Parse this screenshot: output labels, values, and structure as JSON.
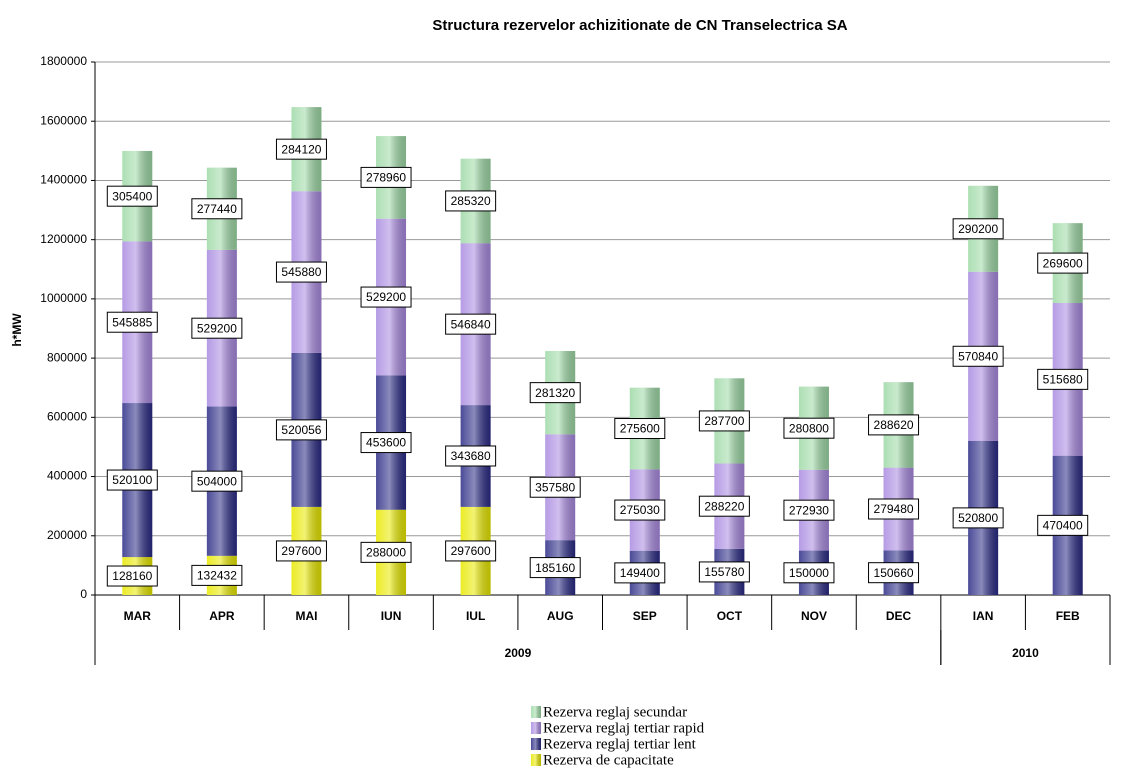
{
  "chart_data": {
    "type": "stacked_bar",
    "title": "Structura rezervelor achizitionate de CN Transelectrica SA",
    "ylabel": "h*MW",
    "categories": [
      "MAR",
      "APR",
      "MAI",
      "IUN",
      "IUL",
      "AUG",
      "SEP",
      "OCT",
      "NOV",
      "DEC",
      "IAN",
      "FEB"
    ],
    "x_groups": [
      {
        "label": "2009",
        "first": 0,
        "last": 9
      },
      {
        "label": "2010",
        "first": 10,
        "last": 11
      }
    ],
    "series": [
      {
        "name": "Rezerva de capacitate",
        "color": "#e8e800",
        "values": [
          128160,
          132432,
          297600,
          288000,
          297600,
          null,
          null,
          null,
          null,
          null,
          null,
          null
        ]
      },
      {
        "name": "Rezerva reglaj tertiar lent",
        "color": "#2b2b86",
        "values": [
          520100,
          504000,
          520056,
          453600,
          343680,
          185160,
          149400,
          155780,
          150000,
          150660,
          520800,
          470400
        ]
      },
      {
        "name": "Rezerva reglaj tertiar rapid",
        "color": "#a98ae0",
        "values": [
          545885,
          529200,
          545880,
          529200,
          546840,
          357580,
          275030,
          288220,
          272930,
          279480,
          570840,
          515680
        ]
      },
      {
        "name": "Rezerva reglaj secundar",
        "color": "#9ed9a6",
        "values": [
          305400,
          277440,
          284120,
          278960,
          285320,
          281320,
          275600,
          287700,
          280800,
          288620,
          290200,
          269600
        ]
      }
    ],
    "ylim": [
      0,
      1800000
    ],
    "yticks": [
      0,
      200000,
      400000,
      600000,
      800000,
      1000000,
      1200000,
      1400000,
      1600000,
      1800000
    ],
    "grid": true
  }
}
